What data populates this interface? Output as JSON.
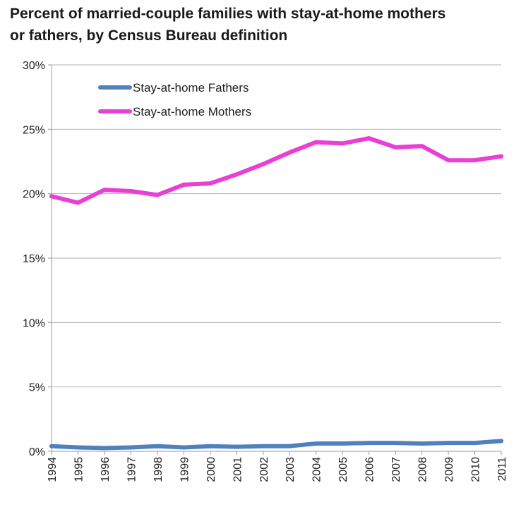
{
  "chart_data": {
    "type": "line",
    "title_line1": "Percent of married-couple families with stay-at-home mothers",
    "title_line2": "or fathers, by Census Bureau definition",
    "xlabel": "",
    "ylabel": "",
    "ylim": [
      0,
      30
    ],
    "yticks": [
      0,
      5,
      10,
      15,
      20,
      25,
      30
    ],
    "ytick_labels": [
      "0%",
      "5%",
      "10%",
      "15%",
      "20%",
      "25%",
      "30%"
    ],
    "categories": [
      "1994",
      "1995",
      "1996",
      "1997",
      "1998",
      "1999",
      "2000",
      "2001",
      "2002",
      "2003",
      "2004",
      "2005",
      "2006",
      "2007",
      "2008",
      "2009",
      "2010",
      "2011"
    ],
    "grid": true,
    "legend_position": "top-left",
    "series": [
      {
        "name": "Stay-at-home Fathers",
        "color": "#4F81BD",
        "values": [
          0.4,
          0.3,
          0.25,
          0.3,
          0.4,
          0.3,
          0.4,
          0.35,
          0.4,
          0.4,
          0.6,
          0.6,
          0.65,
          0.65,
          0.6,
          0.65,
          0.65,
          0.8
        ]
      },
      {
        "name": "Stay-at-home Mothers",
        "color": "#E83FD5",
        "values": [
          19.8,
          19.3,
          20.3,
          20.2,
          19.9,
          20.7,
          20.8,
          21.5,
          22.3,
          23.2,
          24.0,
          23.9,
          24.3,
          23.6,
          23.7,
          22.6,
          22.6,
          22.9
        ]
      }
    ]
  }
}
